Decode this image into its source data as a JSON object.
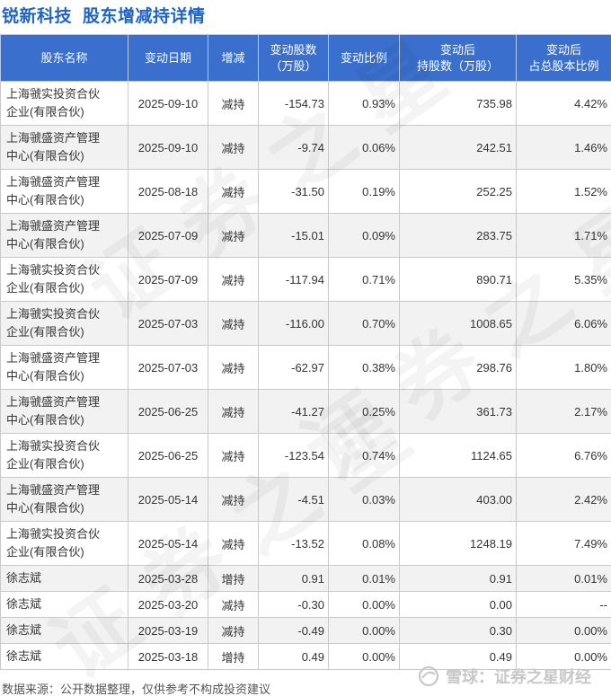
{
  "header": {
    "company": "锐新科技",
    "title": "股东增减持详情"
  },
  "table": {
    "columns": [
      {
        "line1": "股东名称",
        "line2": ""
      },
      {
        "line1": "变动日期",
        "line2": ""
      },
      {
        "line1": "增减",
        "line2": ""
      },
      {
        "line1": "变动股数",
        "line2": "（万股）"
      },
      {
        "line1": "变动比例",
        "line2": ""
      },
      {
        "line1": "变动后",
        "line2": "持股数（万股）"
      },
      {
        "line1": "变动后",
        "line2": "占总股本比例"
      }
    ],
    "rows": [
      {
        "name1": "上海虢实投资合伙",
        "name2": "企业(有限合伙)",
        "date": "2025-09-10",
        "dir": "减持",
        "change": "-154.73",
        "ratio": "0.93%",
        "after": "735.98",
        "pct": "4.42%",
        "sign": "neg"
      },
      {
        "name1": "上海虢盛资产管理",
        "name2": "中心(有限合伙)",
        "date": "2025-09-10",
        "dir": "减持",
        "change": "-9.74",
        "ratio": "0.06%",
        "after": "242.51",
        "pct": "1.46%",
        "sign": "neg"
      },
      {
        "name1": "上海虢盛资产管理",
        "name2": "中心(有限合伙)",
        "date": "2025-08-18",
        "dir": "减持",
        "change": "-31.50",
        "ratio": "0.19%",
        "after": "252.25",
        "pct": "1.52%",
        "sign": "neg"
      },
      {
        "name1": "上海虢盛资产管理",
        "name2": "中心(有限合伙)",
        "date": "2025-07-09",
        "dir": "减持",
        "change": "-15.01",
        "ratio": "0.09%",
        "after": "283.75",
        "pct": "1.71%",
        "sign": "neg"
      },
      {
        "name1": "上海虢实投资合伙",
        "name2": "企业(有限合伙)",
        "date": "2025-07-09",
        "dir": "减持",
        "change": "-117.94",
        "ratio": "0.71%",
        "after": "890.71",
        "pct": "5.35%",
        "sign": "neg"
      },
      {
        "name1": "上海虢实投资合伙",
        "name2": "企业(有限合伙)",
        "date": "2025-07-03",
        "dir": "减持",
        "change": "-116.00",
        "ratio": "0.70%",
        "after": "1008.65",
        "pct": "6.06%",
        "sign": "neg"
      },
      {
        "name1": "上海虢盛资产管理",
        "name2": "中心(有限合伙)",
        "date": "2025-07-03",
        "dir": "减持",
        "change": "-62.97",
        "ratio": "0.38%",
        "after": "298.76",
        "pct": "1.80%",
        "sign": "neg"
      },
      {
        "name1": "上海虢盛资产管理",
        "name2": "中心(有限合伙)",
        "date": "2025-06-25",
        "dir": "减持",
        "change": "-41.27",
        "ratio": "0.25%",
        "after": "361.73",
        "pct": "2.17%",
        "sign": "neg"
      },
      {
        "name1": "上海虢实投资合伙",
        "name2": "企业(有限合伙)",
        "date": "2025-06-25",
        "dir": "减持",
        "change": "-123.54",
        "ratio": "0.74%",
        "after": "1124.65",
        "pct": "6.76%",
        "sign": "neg"
      },
      {
        "name1": "上海虢盛资产管理",
        "name2": "中心(有限合伙)",
        "date": "2025-05-14",
        "dir": "减持",
        "change": "-4.51",
        "ratio": "0.03%",
        "after": "403.00",
        "pct": "2.42%",
        "sign": "neg"
      },
      {
        "name1": "上海虢实投资合伙",
        "name2": "企业(有限合伙)",
        "date": "2025-05-14",
        "dir": "减持",
        "change": "-13.52",
        "ratio": "0.08%",
        "after": "1248.19",
        "pct": "7.49%",
        "sign": "neg"
      },
      {
        "name1": "徐志斌",
        "name2": "",
        "date": "2025-03-28",
        "dir": "增持",
        "change": "0.91",
        "ratio": "0.01%",
        "after": "0.91",
        "pct": "0.01%",
        "sign": "pos"
      },
      {
        "name1": "徐志斌",
        "name2": "",
        "date": "2025-03-20",
        "dir": "减持",
        "change": "-0.30",
        "ratio": "0.00%",
        "after": "0.00",
        "pct": "--",
        "sign": "neg"
      },
      {
        "name1": "徐志斌",
        "name2": "",
        "date": "2025-03-19",
        "dir": "减持",
        "change": "-0.49",
        "ratio": "0.00%",
        "after": "0.30",
        "pct": "0.00%",
        "sign": "neg"
      },
      {
        "name1": "徐志斌",
        "name2": "",
        "date": "2025-03-18",
        "dir": "增持",
        "change": "0.49",
        "ratio": "0.00%",
        "after": "0.49",
        "pct": "0.00%",
        "sign": "pos"
      }
    ]
  },
  "footer": {
    "source": "数据来源：公开数据整理，仅供参考不构成投资建议",
    "brand": "雪球：证券之星财经"
  },
  "watermark": "证券之星",
  "colors": {
    "header_bg": "#3a6fcd",
    "title": "#1f63c6",
    "decrease": "#1e9a3c",
    "increase": "#d81e1e"
  }
}
